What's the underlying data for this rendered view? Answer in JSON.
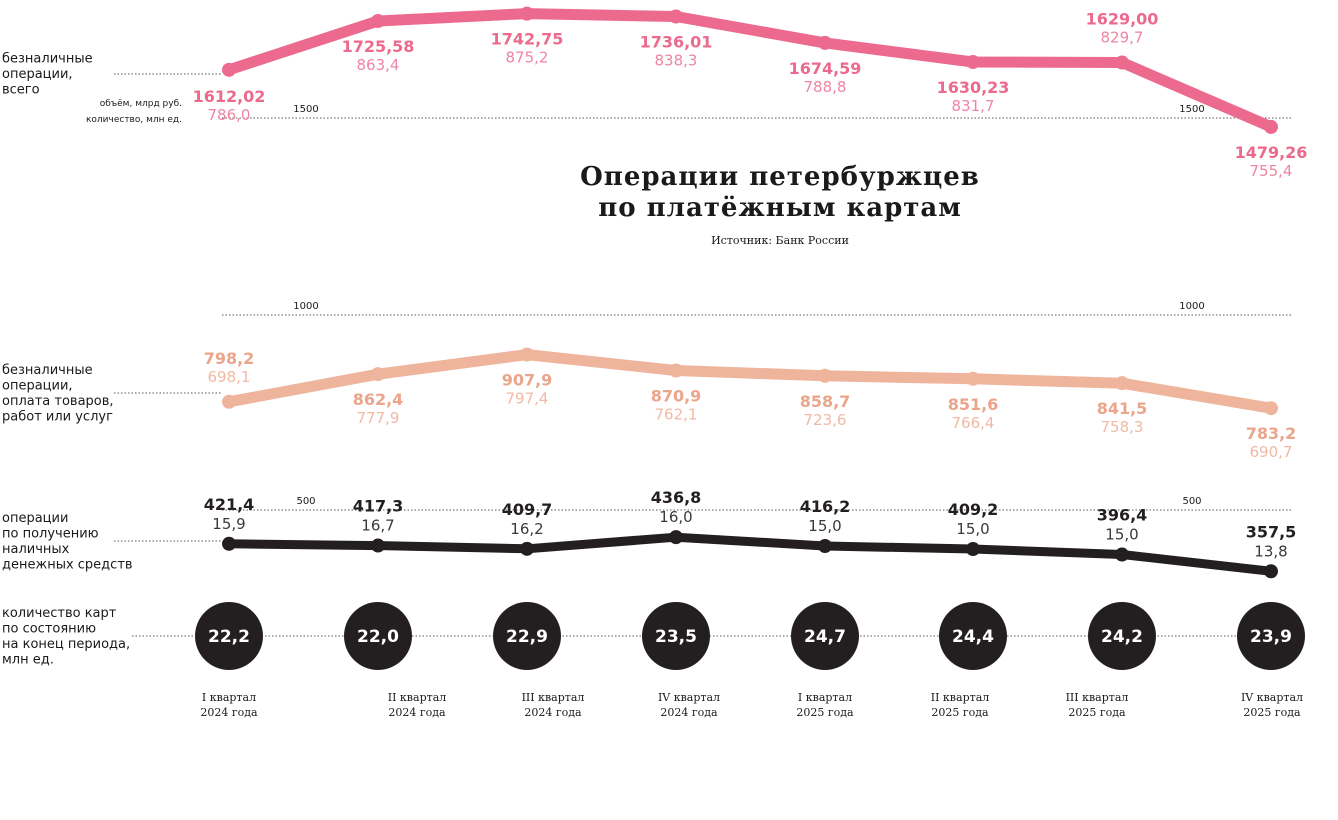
{
  "title_line1": "Операции петербуржцев",
  "title_line2": "по платёжным картам",
  "source": "Источник: Банк России",
  "chart_data": {
    "type": "line",
    "categories": [
      [
        "I квартал",
        "2024 года"
      ],
      [
        "II квартал",
        "2024 года"
      ],
      [
        "III квартал",
        "2024 года"
      ],
      [
        "IV квартал",
        "2024 года"
      ],
      [
        "I квартал",
        "2025 года"
      ],
      [
        "II квартал",
        "2025 года"
      ],
      [
        "III квартал",
        "2025 года"
      ],
      [
        "IV квартал",
        "2025 года"
      ]
    ],
    "legend_units": {
      "volume": "объём, млрд руб.",
      "count": "количество, млн ед."
    },
    "series": [
      {
        "key": "total",
        "label": [
          "безналичные",
          "операции,",
          "всего"
        ],
        "color": "#ec6a8e",
        "volume_labels": [
          "1612,02",
          "1725,58",
          "1742,75",
          "1736,01",
          "1674,59",
          "1630,23",
          "1629,00",
          "1479,26"
        ],
        "count_labels": [
          "786,0",
          "863,4",
          "875,2",
          "838,3",
          "788,8",
          "831,7",
          "829,7",
          "755,4"
        ],
        "volume": [
          1612.02,
          1725.58,
          1742.75,
          1736.01,
          1674.59,
          1630.23,
          1629.0,
          1479.26
        ],
        "scale_label": "1500",
        "scale_value": 1500
      },
      {
        "key": "purchases",
        "label": [
          "безналичные",
          "операции,",
          "оплата товаров,",
          "работ или услуг"
        ],
        "color": "#efb49c",
        "volume_labels": [
          "798,2",
          "862,4",
          "907,9",
          "870,9",
          "858,7",
          "851,6",
          "841,5",
          "783,2"
        ],
        "count_labels": [
          "698,1",
          "777,9",
          "797,4",
          "762,1",
          "723,6",
          "766,4",
          "758,3",
          "690,7"
        ],
        "volume": [
          798.2,
          862.4,
          907.9,
          870.9,
          858.7,
          851.6,
          841.5,
          783.2
        ],
        "scale_label": "1000",
        "scale_value": 1000
      },
      {
        "key": "cash",
        "label": [
          "операции",
          "по получению",
          "наличных",
          "денежных средств"
        ],
        "color": "#231f20",
        "volume_labels": [
          "421,4",
          "417,3",
          "409,7",
          "436,8",
          "416,2",
          "409,2",
          "396,4",
          "357,5"
        ],
        "count_labels": [
          "15,9",
          "16,7",
          "16,2",
          "16,0",
          "15,0",
          "15,0",
          "15,0",
          "13,8"
        ],
        "volume": [
          421.4,
          417.3,
          409.7,
          436.8,
          416.2,
          409.2,
          396.4,
          357.5
        ],
        "scale_label": "500",
        "scale_value": 500
      }
    ],
    "cards": {
      "label": [
        "количество карт",
        "по состоянию",
        "на конец периода,",
        "млн ед."
      ],
      "values": [
        "22,2",
        "22,0",
        "22,9",
        "23,5",
        "24,7",
        "24,4",
        "24,2",
        "23,9"
      ],
      "color": "#231f20"
    }
  }
}
